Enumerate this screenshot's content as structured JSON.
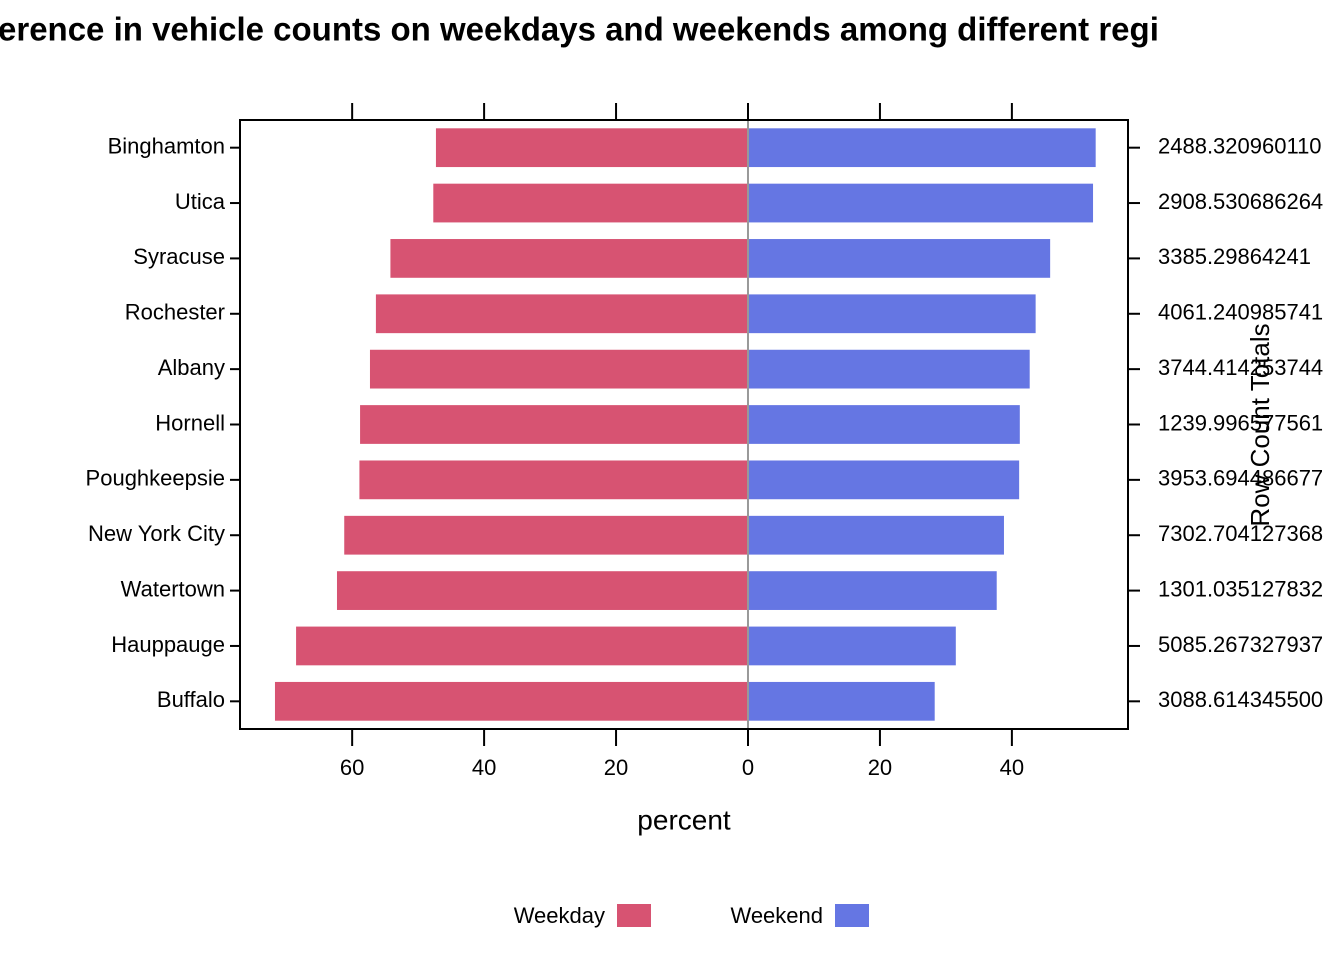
{
  "chart_data": {
    "type": "diverging-bar",
    "title": "erence in vehicle counts on weekdays and weekends among different regi",
    "x_label": "percent",
    "y2_label": "Row Count Totals",
    "categories": [
      "Binghamton",
      "Utica",
      "Syracuse",
      "Rochester",
      "Albany",
      "Hornell",
      "Poughkeepsie",
      "New York City",
      "Watertown",
      "Hauppauge",
      "Buffalo"
    ],
    "row_totals": [
      "2488.320960110",
      "2908.530686264",
      "3385.29864241",
      "4061.240985741",
      "3744.414253744",
      "1239.996577561",
      "3953.694486677",
      "7302.704127368",
      "1301.035127832",
      "5085.267327937",
      "3088.614345500"
    ],
    "series": [
      {
        "name": "Weekday",
        "color": "#d75372",
        "values": [
          -47.3,
          -47.7,
          -54.2,
          -56.4,
          -57.3,
          -58.8,
          -58.9,
          -61.2,
          -62.3,
          -68.5,
          -71.7
        ]
      },
      {
        "name": "Weekend",
        "color": "#6576e3",
        "values": [
          52.7,
          52.3,
          45.8,
          43.6,
          42.7,
          41.2,
          41.1,
          38.8,
          37.7,
          31.5,
          28.3
        ]
      }
    ],
    "xlim": [
      -77,
      57.6
    ],
    "xticks": [
      {
        "value": -60,
        "label": "60"
      },
      {
        "value": -40,
        "label": "40"
      },
      {
        "value": -20,
        "label": "20"
      },
      0,
      20,
      40
    ]
  }
}
